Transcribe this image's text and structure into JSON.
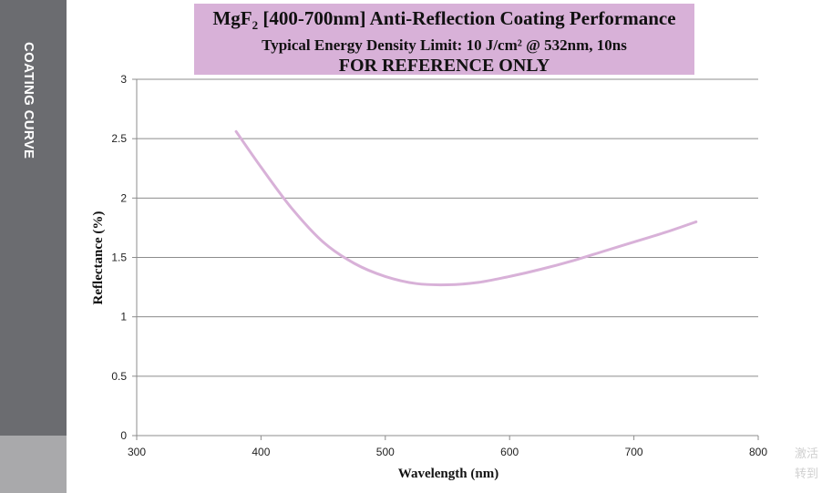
{
  "sidebar": {
    "label": "COATING CURVE"
  },
  "title": {
    "line1_prefix": "MgF",
    "line1_sub": "2",
    "line1_rest": " [400-700nm] Anti-Reflection Coating Performance",
    "line2": "Typical Energy Density Limit: 10 J/cm² @ 532nm, 10ns",
    "line3": "FOR REFERENCE ONLY"
  },
  "watermark": {
    "line1": "激活",
    "line2": "转到"
  },
  "colors": {
    "curve": "#d8b1d8",
    "title_bg": "#d8b1d8",
    "side_band": "#6b6c70"
  },
  "chart_data": {
    "type": "line",
    "title": "MgF2 [400-700nm] Anti-Reflection Coating Performance",
    "xlabel": "Wavelength (nm)",
    "ylabel": "Reflectance (%)",
    "xlim": [
      300,
      800
    ],
    "ylim": [
      0,
      3
    ],
    "x_ticks": [
      300,
      400,
      500,
      600,
      700,
      800
    ],
    "y_ticks": [
      0,
      0.5,
      1,
      1.5,
      2,
      2.5,
      3
    ],
    "y_tick_labels": [
      "0",
      "0.5",
      "1",
      "1.5",
      "2",
      "2.5",
      "3"
    ],
    "grid": "horizontal",
    "series": [
      {
        "name": "Reflectance",
        "x": [
          380,
          400,
          425,
          450,
          475,
          500,
          525,
          550,
          575,
          600,
          625,
          650,
          675,
          700,
          725,
          750
        ],
        "y": [
          2.56,
          2.26,
          1.91,
          1.63,
          1.45,
          1.34,
          1.28,
          1.27,
          1.29,
          1.34,
          1.4,
          1.47,
          1.55,
          1.63,
          1.71,
          1.8
        ]
      }
    ]
  }
}
